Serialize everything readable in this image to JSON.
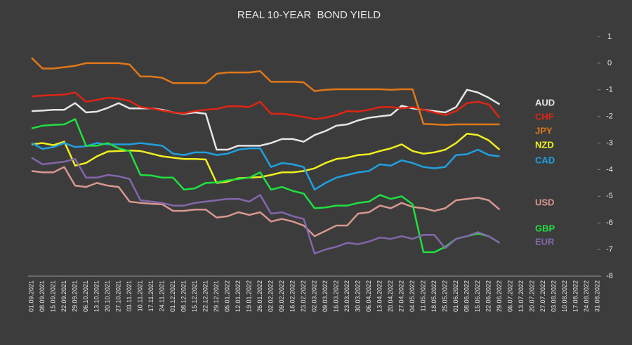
{
  "chart_data": {
    "type": "line",
    "title": "REAL 10-YEAR  BOND YIELD",
    "x": [
      "01.09.2021",
      "08.09.2021",
      "15.09.2021",
      "22.09.2021",
      "29.09.2021",
      "06.10.2021",
      "13.10.2021",
      "20.10.2021",
      "27.10.2021",
      "03.11.2021",
      "10.11.2021",
      "17.11.2021",
      "24.11.2021",
      "01.12.2021",
      "08.12.2021",
      "15.12.2021",
      "22.12.2021",
      "29.12.2021",
      "05.01.2022",
      "12.01.2022",
      "19.01.2022",
      "26.01.2022",
      "02.02.2022",
      "09.02.2022",
      "16.02.2022",
      "23.02.2022",
      "02.03.2022",
      "09.03.2022",
      "16.03.2022",
      "23.03.2022",
      "30.03.2022",
      "06.04.2022",
      "13.04.2022",
      "20.04.2022",
      "27.04.2022",
      "04.05.2022",
      "11.05.2022",
      "18.05.2022",
      "25.05.2022",
      "01.06.2022",
      "08.06.2022",
      "15.06.2022",
      "22.06.2022",
      "29.06.2022",
      "06.07.2022",
      "13.07.2022",
      "20.07.2022",
      "27.07.2022",
      "03.08.2022",
      "10.08.2022",
      "17.08.2022",
      "24.08.2022",
      "31.08.2022"
    ],
    "ylim": [
      -8,
      1
    ],
    "yticks": [
      -8,
      -7,
      -6,
      -5,
      -4,
      -3,
      -2,
      -1,
      0,
      1
    ],
    "grid": false,
    "series": [
      {
        "name": "AUD",
        "color": "#e6e6e6",
        "values": [
          -1.8,
          -1.78,
          -1.75,
          -1.75,
          -1.5,
          -1.85,
          -1.82,
          -1.68,
          -1.5,
          -1.7,
          -1.7,
          -1.7,
          -1.75,
          -1.85,
          -1.9,
          -1.85,
          -1.9,
          -3.25,
          -3.25,
          -3.1,
          -3.1,
          -3.1,
          -3.0,
          -2.85,
          -2.85,
          -2.95,
          -2.7,
          -2.55,
          -2.35,
          -2.3,
          -2.15,
          -2.05,
          -2.0,
          -1.95,
          -1.6,
          -1.7,
          -1.75,
          -1.8,
          -1.85,
          -1.65,
          -1.0,
          -1.1,
          -1.3,
          -1.55,
          null,
          null,
          null,
          null,
          null,
          null,
          null,
          null,
          null
        ]
      },
      {
        "name": "CHF",
        "color": "#e02414",
        "values": [
          -1.25,
          -1.22,
          -1.2,
          -1.18,
          -1.1,
          -1.45,
          -1.38,
          -1.3,
          -1.33,
          -1.42,
          -1.65,
          -1.7,
          -1.78,
          -1.85,
          -1.88,
          -1.8,
          -1.75,
          -1.72,
          -1.62,
          -1.62,
          -1.65,
          -1.45,
          -1.9,
          -1.9,
          -1.95,
          -2.02,
          -2.1,
          -2.05,
          -1.95,
          -1.8,
          -1.82,
          -1.75,
          -1.65,
          -1.65,
          -1.7,
          -1.65,
          -1.75,
          -1.85,
          -1.95,
          -1.8,
          -1.5,
          -1.45,
          -1.55,
          -2.05,
          null,
          null,
          null,
          null,
          null,
          null,
          null,
          null,
          null
        ]
      },
      {
        "name": "JPY",
        "color": "#e07818",
        "values": [
          0.2,
          -0.2,
          -0.2,
          -0.15,
          -0.1,
          0,
          0,
          0,
          0,
          -0.05,
          -0.5,
          -0.5,
          -0.55,
          -0.75,
          -0.75,
          -0.75,
          -0.75,
          -0.4,
          -0.35,
          -0.35,
          -0.35,
          -0.3,
          -0.7,
          -0.7,
          -0.7,
          -0.72,
          -1.05,
          -1.0,
          -0.98,
          -0.98,
          -0.98,
          -0.98,
          -0.98,
          -1.0,
          -0.98,
          -0.98,
          -2.28,
          -2.3,
          -2.32,
          -2.3,
          -2.3,
          -2.3,
          -2.3,
          -2.3,
          null,
          null,
          null,
          null,
          null,
          null,
          null,
          null,
          null
        ]
      },
      {
        "name": "NZD",
        "color": "#f0f020",
        "values": [
          -3.05,
          -3.0,
          -3.08,
          -2.95,
          -3.85,
          -3.75,
          -3.5,
          -3.32,
          -3.3,
          -3.28,
          -3.3,
          -3.4,
          -3.5,
          -3.55,
          -3.6,
          -3.6,
          -3.62,
          -4.5,
          -4.45,
          -4.32,
          -4.3,
          -4.28,
          -4.2,
          -4.1,
          -4.1,
          -4.05,
          -3.95,
          -3.75,
          -3.6,
          -3.55,
          -3.45,
          -3.42,
          -3.3,
          -3.2,
          -3.05,
          -3.3,
          -3.4,
          -3.35,
          -3.25,
          -3.0,
          -2.65,
          -2.7,
          -2.9,
          -3.25,
          null,
          null,
          null,
          null,
          null,
          null,
          null,
          null,
          null
        ]
      },
      {
        "name": "CAD",
        "color": "#20a0e0",
        "values": [
          -3.0,
          -3.22,
          -3.15,
          -3.0,
          -3.15,
          -3.12,
          -3.0,
          -3.05,
          -3.05,
          -3.05,
          -3.0,
          -3.05,
          -3.1,
          -3.4,
          -3.45,
          -3.35,
          -3.35,
          -3.45,
          -3.4,
          -3.25,
          -3.2,
          -3.2,
          -3.9,
          -3.75,
          -3.8,
          -3.9,
          -4.75,
          -4.5,
          -4.3,
          -4.2,
          -4.1,
          -4.05,
          -3.8,
          -3.85,
          -3.65,
          -3.75,
          -3.9,
          -3.95,
          -3.9,
          -3.45,
          -3.42,
          -3.25,
          -3.45,
          -3.5,
          null,
          null,
          null,
          null,
          null,
          null,
          null,
          null,
          null
        ]
      },
      {
        "name": "USD",
        "color": "#d89890",
        "values": [
          -4.05,
          -4.1,
          -4.1,
          -3.9,
          -4.6,
          -4.65,
          -4.5,
          -4.6,
          -4.65,
          -5.2,
          -5.25,
          -5.28,
          -5.3,
          -5.55,
          -5.55,
          -5.5,
          -5.5,
          -5.8,
          -5.75,
          -5.6,
          -5.7,
          -5.6,
          -5.95,
          -5.85,
          -5.95,
          -6.1,
          -6.5,
          -6.3,
          -6.1,
          -6.1,
          -5.65,
          -5.6,
          -5.35,
          -5.45,
          -5.25,
          -5.4,
          -5.45,
          -5.55,
          -5.45,
          -5.15,
          -5.1,
          -5.05,
          -5.15,
          -5.5,
          null,
          null,
          null,
          null,
          null,
          null,
          null,
          null,
          null
        ]
      },
      {
        "name": "GBP",
        "color": "#20e040",
        "values": [
          -2.45,
          -2.35,
          -2.32,
          -2.3,
          -2.1,
          -3.1,
          -3.1,
          -3.0,
          -3.2,
          -3.3,
          -4.2,
          -4.22,
          -4.3,
          -4.3,
          -4.75,
          -4.7,
          -4.5,
          -4.48,
          -4.4,
          -4.35,
          -4.3,
          -4.1,
          -4.75,
          -4.65,
          -4.8,
          -4.9,
          -5.45,
          -5.42,
          -5.35,
          -5.35,
          -5.25,
          -5.2,
          -4.95,
          -5.1,
          -5.0,
          -5.3,
          -7.1,
          -7.1,
          -6.9,
          -6.6,
          -6.5,
          -6.4,
          -6.5,
          -6.75,
          null,
          null,
          null,
          null,
          null,
          null,
          null,
          null,
          null
        ]
      },
      {
        "name": "EUR",
        "color": "#8466ac",
        "values": [
          -3.55,
          -3.8,
          -3.75,
          -3.7,
          -3.6,
          -4.3,
          -4.3,
          -4.2,
          -4.25,
          -4.35,
          -5.15,
          -5.2,
          -5.25,
          -5.35,
          -5.35,
          -5.25,
          -5.2,
          -5.15,
          -5.1,
          -5.1,
          -5.2,
          -4.95,
          -5.65,
          -5.6,
          -5.75,
          -5.85,
          -7.15,
          -7.0,
          -6.9,
          -6.75,
          -6.8,
          -6.7,
          -6.55,
          -6.6,
          -6.5,
          -6.6,
          -6.45,
          -6.45,
          -6.95,
          -6.6,
          -6.5,
          -6.35,
          -6.5,
          -6.75,
          null,
          null,
          null,
          null,
          null,
          null,
          null,
          null,
          null
        ]
      }
    ]
  }
}
